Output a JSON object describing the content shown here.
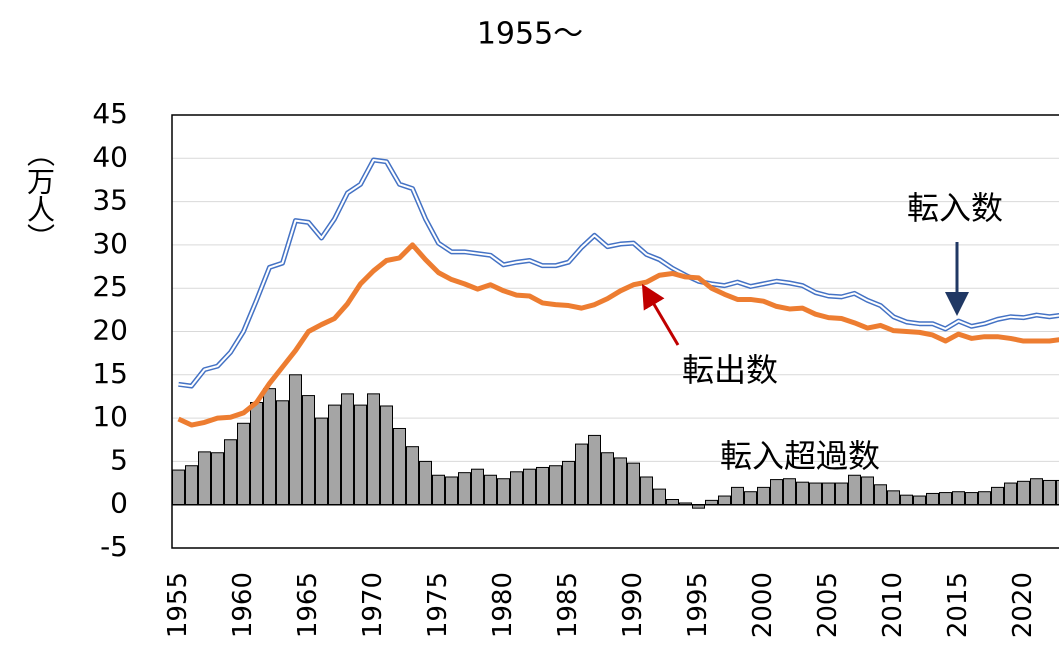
{
  "chart_data": {
    "type": "combo",
    "title": "1955～",
    "ylabel": "（万人）",
    "categories": [
      "1955",
      null,
      null,
      null,
      null,
      "1960",
      null,
      null,
      null,
      null,
      "1965",
      null,
      null,
      null,
      null,
      "1970",
      null,
      null,
      null,
      null,
      "1975",
      null,
      null,
      null,
      null,
      "1980",
      null,
      null,
      null,
      null,
      "1985",
      null,
      null,
      null,
      null,
      "1990",
      null,
      null,
      null,
      null,
      "1995",
      null,
      null,
      null,
      null,
      "2000",
      null,
      null,
      null,
      null,
      "2005",
      null,
      null,
      null,
      null,
      "2010",
      null,
      null,
      null,
      null,
      "2015",
      null,
      null,
      null,
      null,
      "2020",
      null,
      null,
      null
    ],
    "series": [
      {
        "name": "転入超過数",
        "type": "bar",
        "color": "#a5a5a5",
        "values": [
          4.0,
          4.5,
          6.1,
          6.0,
          7.5,
          9.4,
          11.8,
          13.4,
          12.0,
          15.0,
          12.6,
          10.0,
          11.5,
          12.8,
          11.5,
          12.8,
          11.4,
          8.8,
          6.7,
          5.0,
          3.4,
          3.2,
          3.7,
          4.1,
          3.4,
          3.0,
          3.8,
          4.1,
          4.3,
          4.5,
          5.0,
          7.0,
          8.0,
          6.0,
          5.4,
          4.8,
          3.2,
          1.8,
          0.6,
          0.2,
          -0.4,
          0.5,
          1.0,
          2.0,
          1.5,
          2.0,
          2.9,
          3.0,
          2.6,
          2.5,
          2.5,
          2.5,
          3.4,
          3.2,
          2.3,
          1.6,
          1.1,
          1.0,
          1.3,
          1.4,
          1.5,
          1.4,
          1.5,
          2.0,
          2.5,
          2.7,
          3.0,
          2.8,
          2.8
        ]
      },
      {
        "name": "転入数",
        "type": "line",
        "color": "#4472c4",
        "style": "double",
        "values": [
          13.9,
          13.7,
          15.6,
          16.0,
          17.6,
          20.0,
          23.6,
          27.4,
          27.9,
          32.8,
          32.6,
          30.8,
          33.0,
          36.0,
          37.0,
          39.8,
          39.6,
          37.0,
          36.5,
          33.0,
          30.2,
          29.2,
          29.2,
          29.0,
          28.8,
          27.7,
          28.0,
          28.2,
          27.6,
          27.6,
          28.0,
          29.7,
          31.1,
          29.8,
          30.1,
          30.2,
          28.9,
          28.3,
          27.3,
          26.5,
          25.8,
          25.5,
          25.3,
          25.7,
          25.2,
          25.5,
          25.8,
          25.6,
          25.3,
          24.5,
          24.1,
          24.0,
          24.4,
          23.6,
          23.0,
          21.7,
          21.1,
          20.9,
          20.9,
          20.3,
          21.2,
          20.6,
          20.9,
          21.4,
          21.7,
          21.6,
          21.9,
          21.7,
          21.9
        ]
      },
      {
        "name": "転出数",
        "type": "line",
        "color": "#ed7d31",
        "style": "solid",
        "values": [
          9.9,
          9.2,
          9.5,
          10.0,
          10.1,
          10.6,
          11.8,
          14.0,
          15.9,
          17.8,
          20.0,
          20.8,
          21.5,
          23.2,
          25.5,
          27.0,
          28.2,
          28.5,
          30.0,
          28.3,
          26.8,
          26.0,
          25.5,
          24.9,
          25.4,
          24.7,
          24.2,
          24.1,
          23.3,
          23.1,
          23.0,
          22.7,
          23.1,
          23.8,
          24.7,
          25.4,
          25.7,
          26.5,
          26.7,
          26.3,
          26.2,
          25.0,
          24.3,
          23.7,
          23.7,
          23.5,
          22.9,
          22.6,
          22.7,
          22.0,
          21.6,
          21.5,
          21.0,
          20.4,
          20.7,
          20.1,
          20.0,
          19.9,
          19.6,
          18.9,
          19.7,
          19.2,
          19.4,
          19.4,
          19.2,
          18.9,
          18.9,
          18.9,
          19.1
        ]
      }
    ],
    "annotations": [
      {
        "text": "転入数",
        "arrow_color": "#203864"
      },
      {
        "text": "転出数",
        "arrow_color": "#c00000"
      },
      {
        "text": "転入超過数"
      }
    ],
    "ylim": [
      -5,
      45
    ],
    "yticks": [
      -5,
      0,
      5,
      10,
      15,
      20,
      25,
      30,
      35,
      40,
      45
    ],
    "grid": true
  }
}
